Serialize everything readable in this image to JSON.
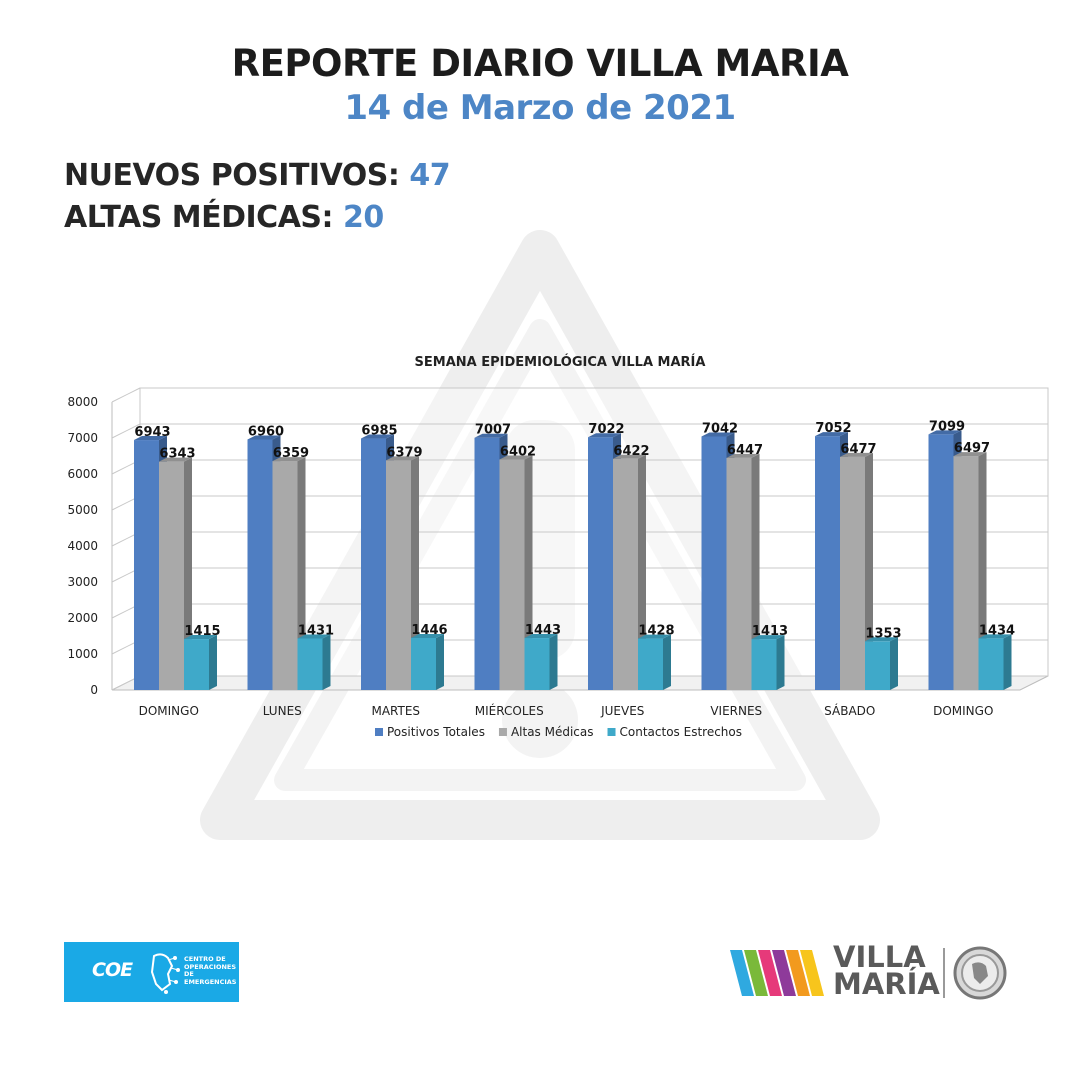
{
  "header": {
    "title": "REPORTE DIARIO VILLA MARIA",
    "date": "14 de Marzo de 2021"
  },
  "stats": {
    "new_positives_label": "NUEVOS POSITIVOS:",
    "new_positives_value": "47",
    "discharges_label": "ALTAS MÉDICAS:",
    "discharges_value": "20"
  },
  "chart_data": {
    "type": "bar",
    "title": "SEMANA EPIDEMIOLÓGICA VILLA MARÍA",
    "categories": [
      "DOMINGO",
      "LUNES",
      "MARTES",
      "MIÉRCOLES",
      "JUEVES",
      "VIERNES",
      "SÁBADO",
      "DOMINGO"
    ],
    "series": [
      {
        "name": "Positivos Totales",
        "color": "#4f7ec2",
        "values": [
          6943,
          6960,
          6985,
          7007,
          7022,
          7042,
          7052,
          7099
        ]
      },
      {
        "name": "Altas Médicas",
        "color": "#a9a9a9",
        "values": [
          6343,
          6359,
          6379,
          6402,
          6422,
          6447,
          6477,
          6497
        ]
      },
      {
        "name": "Contactos Estrechos",
        "color": "#3fa9c9",
        "values": [
          1415,
          1431,
          1446,
          1443,
          1428,
          1413,
          1353,
          1434
        ]
      }
    ],
    "ylim": [
      0,
      8000
    ],
    "yticks": [
      0,
      1000,
      2000,
      3000,
      4000,
      5000,
      6000,
      7000,
      8000
    ],
    "grid": true,
    "legend": "bottom",
    "style": "3d-bar"
  },
  "logos": {
    "coe_abbr": "COE",
    "coe_line1": "CENTRO DE",
    "coe_line2": "OPERACIONES DE",
    "coe_line3": "EMERGENCIAS",
    "vm_line1": "VILLA",
    "vm_line2": "MARÍA",
    "coe_color": "#1aa9e6"
  }
}
